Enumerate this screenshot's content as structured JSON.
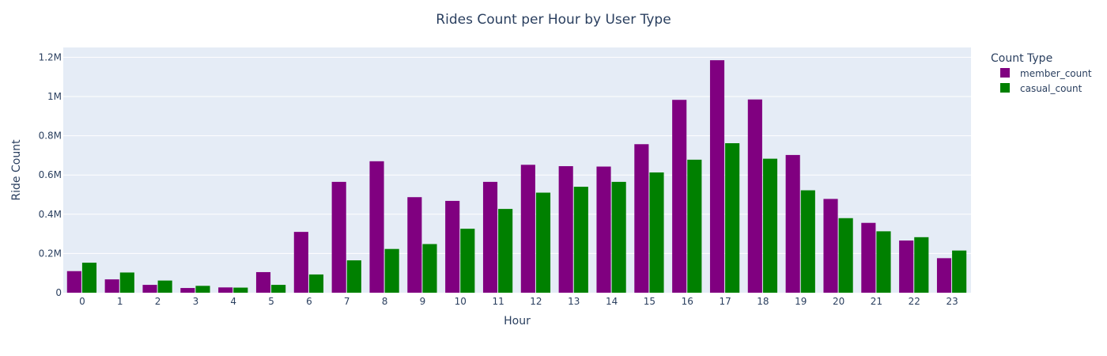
{
  "chart_data": {
    "type": "bar",
    "title": "Rides Count per Hour by User Type",
    "xlabel": "Hour",
    "ylabel": "Ride Count",
    "legend_title": "Count Type",
    "legend_position": "top-right",
    "grid": true,
    "ylim": [
      0,
      1250000
    ],
    "yticks": [
      {
        "value": 0,
        "label": "0"
      },
      {
        "value": 200000,
        "label": "0.2M"
      },
      {
        "value": 400000,
        "label": "0.4M"
      },
      {
        "value": 600000,
        "label": "0.6M"
      },
      {
        "value": 800000,
        "label": "0.8M"
      },
      {
        "value": 1000000,
        "label": "1M"
      },
      {
        "value": 1200000,
        "label": "1.2M"
      }
    ],
    "categories": [
      "0",
      "1",
      "2",
      "3",
      "4",
      "5",
      "6",
      "7",
      "8",
      "9",
      "10",
      "11",
      "12",
      "13",
      "14",
      "15",
      "16",
      "17",
      "18",
      "19",
      "20",
      "21",
      "22",
      "23"
    ],
    "series": [
      {
        "name": "member_count",
        "color": "#800080",
        "values": [
          110000,
          68000,
          40000,
          24000,
          27000,
          105000,
          310000,
          565000,
          670000,
          487000,
          468000,
          565000,
          652000,
          645000,
          643000,
          757000,
          983000,
          1185000,
          985000,
          702000,
          478000,
          356000,
          266000,
          176000
        ]
      },
      {
        "name": "casual_count",
        "color": "#008000",
        "values": [
          153000,
          103000,
          62000,
          35000,
          26000,
          40000,
          93000,
          165000,
          223000,
          248000,
          326000,
          427000,
          510000,
          540000,
          565000,
          613000,
          678000,
          762000,
          683000,
          522000,
          380000,
          313000,
          283000,
          215000
        ]
      }
    ]
  }
}
